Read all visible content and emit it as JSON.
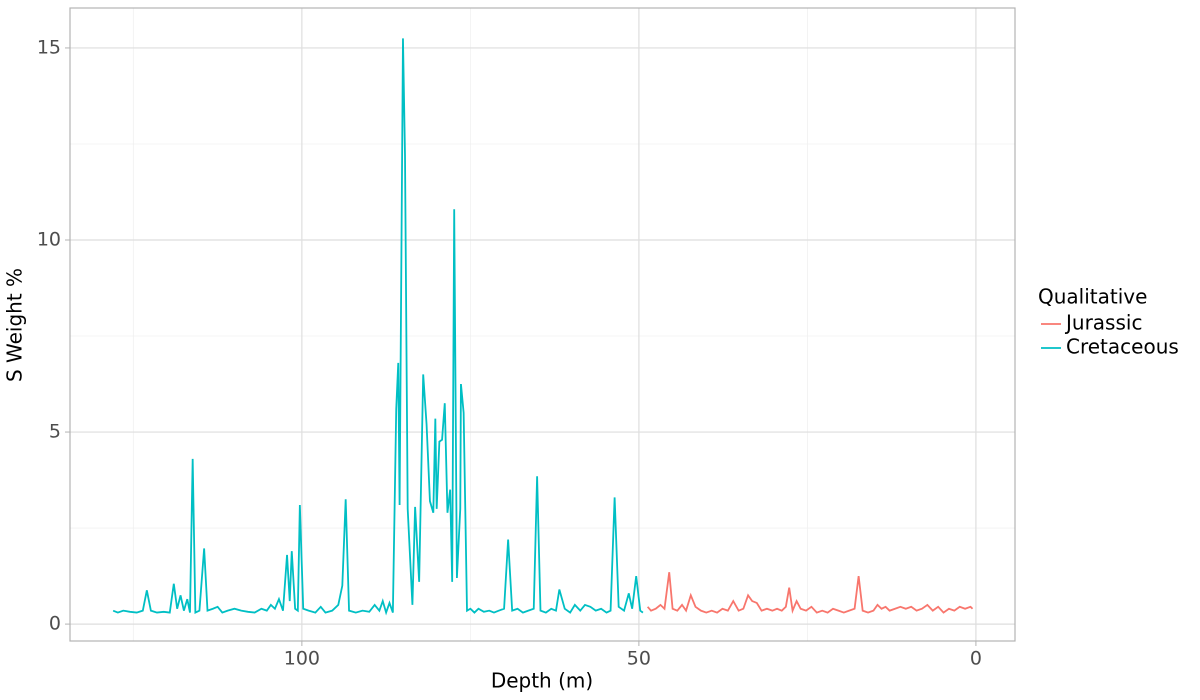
{
  "chart_data": {
    "type": "line",
    "x_label": "Depth (m)",
    "y_label": "S Weight %",
    "legend_title": "Qualitative",
    "legend_position": "right",
    "xlim": [
      134.4,
      -5.8
    ],
    "xticks": [
      100,
      50,
      0
    ],
    "x_reversed": true,
    "ylim": [
      -0.44,
      16.04
    ],
    "yticks": [
      0,
      5,
      10,
      15
    ],
    "grid": true,
    "x_minor_grid": [
      125,
      75,
      25
    ],
    "y_minor_grid": [
      2.5,
      7.5,
      12.5
    ],
    "series": [
      {
        "name": "Jurassic",
        "color": "#F8766D",
        "x": [
          48.7,
          48.2,
          47.5,
          46.8,
          46.2,
          45.5,
          45.0,
          44.3,
          43.6,
          43.0,
          42.3,
          41.6,
          40.8,
          40.0,
          39.2,
          38.4,
          37.6,
          36.8,
          36.0,
          35.2,
          34.5,
          33.8,
          33.2,
          32.5,
          31.8,
          31.0,
          30.2,
          29.5,
          28.8,
          28.2,
          27.7,
          27.2,
          26.6,
          26.0,
          25.2,
          24.4,
          23.6,
          22.8,
          22.0,
          21.2,
          20.4,
          19.6,
          18.8,
          18.0,
          17.4,
          16.8,
          16.0,
          15.2,
          14.6,
          14.0,
          13.4,
          12.8,
          12.0,
          11.2,
          10.4,
          9.6,
          8.8,
          8.0,
          7.2,
          6.4,
          5.6,
          4.8,
          4.0,
          3.2,
          2.4,
          1.6,
          0.8,
          0.5
        ],
        "values": [
          0.45,
          0.35,
          0.4,
          0.5,
          0.4,
          1.35,
          0.4,
          0.35,
          0.5,
          0.35,
          0.75,
          0.45,
          0.35,
          0.3,
          0.35,
          0.3,
          0.4,
          0.35,
          0.6,
          0.35,
          0.4,
          0.75,
          0.6,
          0.55,
          0.35,
          0.4,
          0.35,
          0.4,
          0.35,
          0.45,
          0.95,
          0.35,
          0.6,
          0.4,
          0.35,
          0.45,
          0.3,
          0.35,
          0.3,
          0.4,
          0.35,
          0.3,
          0.35,
          0.4,
          1.25,
          0.35,
          0.3,
          0.35,
          0.5,
          0.4,
          0.45,
          0.35,
          0.4,
          0.45,
          0.4,
          0.45,
          0.35,
          0.4,
          0.5,
          0.35,
          0.45,
          0.3,
          0.4,
          0.35,
          0.45,
          0.4,
          0.45,
          0.4
        ]
      },
      {
        "name": "Cretaceous",
        "color": "#00BFC4",
        "x": [
          128,
          127.3,
          126.5,
          125.5,
          124.5,
          123.6,
          123.0,
          122.4,
          121.5,
          120.5,
          119.6,
          119.0,
          118.5,
          118.0,
          117.5,
          117.0,
          116.6,
          116.2,
          115.8,
          115.2,
          114.5,
          114.0,
          113.2,
          112.5,
          111.8,
          111.0,
          110.0,
          109.0,
          108.0,
          107.0,
          106.0,
          105.2,
          104.6,
          104.0,
          103.4,
          102.8,
          102.2,
          101.8,
          101.5,
          101.0,
          100.6,
          100.3,
          99.8,
          99.0,
          98.0,
          97.2,
          96.5,
          95.5,
          94.6,
          94.0,
          93.5,
          93.0,
          92.0,
          91.0,
          90.0,
          89.2,
          88.5,
          88.0,
          87.5,
          87.0,
          86.5,
          86.0,
          85.7,
          85.5,
          85.0,
          84.7,
          84.3,
          83.6,
          83.2,
          82.6,
          82.0,
          81.5,
          81.0,
          80.5,
          80.2,
          80.0,
          79.6,
          79.2,
          78.8,
          78.4,
          78.0,
          77.7,
          77.4,
          77.0,
          76.5,
          76.4,
          76.0,
          75.5,
          75.0,
          74.4,
          73.8,
          73.0,
          72.2,
          71.5,
          70.8,
          70.0,
          69.4,
          68.8,
          68.0,
          67.2,
          66.4,
          65.6,
          65.1,
          64.6,
          63.8,
          63.0,
          62.3,
          61.8,
          61.0,
          60.2,
          59.5,
          58.7,
          58.0,
          57.2,
          56.4,
          55.6,
          54.8,
          54.2,
          53.6,
          53.0,
          52.2,
          51.5,
          51.0,
          50.4,
          49.8,
          49.4
        ],
        "values": [
          0.35,
          0.3,
          0.35,
          0.32,
          0.3,
          0.35,
          0.88,
          0.35,
          0.3,
          0.32,
          0.3,
          1.05,
          0.4,
          0.75,
          0.35,
          0.65,
          0.3,
          4.3,
          0.3,
          0.35,
          1.97,
          0.35,
          0.4,
          0.45,
          0.3,
          0.35,
          0.4,
          0.35,
          0.32,
          0.3,
          0.4,
          0.35,
          0.5,
          0.4,
          0.65,
          0.35,
          1.8,
          0.6,
          1.9,
          0.4,
          0.35,
          3.1,
          0.4,
          0.35,
          0.3,
          0.45,
          0.3,
          0.35,
          0.5,
          1.0,
          3.25,
          0.35,
          0.3,
          0.35,
          0.32,
          0.5,
          0.35,
          0.6,
          0.3,
          0.55,
          0.3,
          5.6,
          6.8,
          3.1,
          15.25,
          12.2,
          3.0,
          0.5,
          3.05,
          1.1,
          6.5,
          5.2,
          3.2,
          2.9,
          5.35,
          3.0,
          4.75,
          4.8,
          5.75,
          2.9,
          3.5,
          1.1,
          10.8,
          1.2,
          3.0,
          6.25,
          5.5,
          0.35,
          0.4,
          0.3,
          0.4,
          0.32,
          0.35,
          0.3,
          0.35,
          0.4,
          2.2,
          0.35,
          0.4,
          0.3,
          0.35,
          0.4,
          3.85,
          0.35,
          0.3,
          0.4,
          0.35,
          0.9,
          0.4,
          0.3,
          0.5,
          0.35,
          0.5,
          0.45,
          0.35,
          0.4,
          0.3,
          0.35,
          3.3,
          0.45,
          0.35,
          0.8,
          0.4,
          1.25,
          0.35,
          0.3
        ]
      }
    ]
  }
}
